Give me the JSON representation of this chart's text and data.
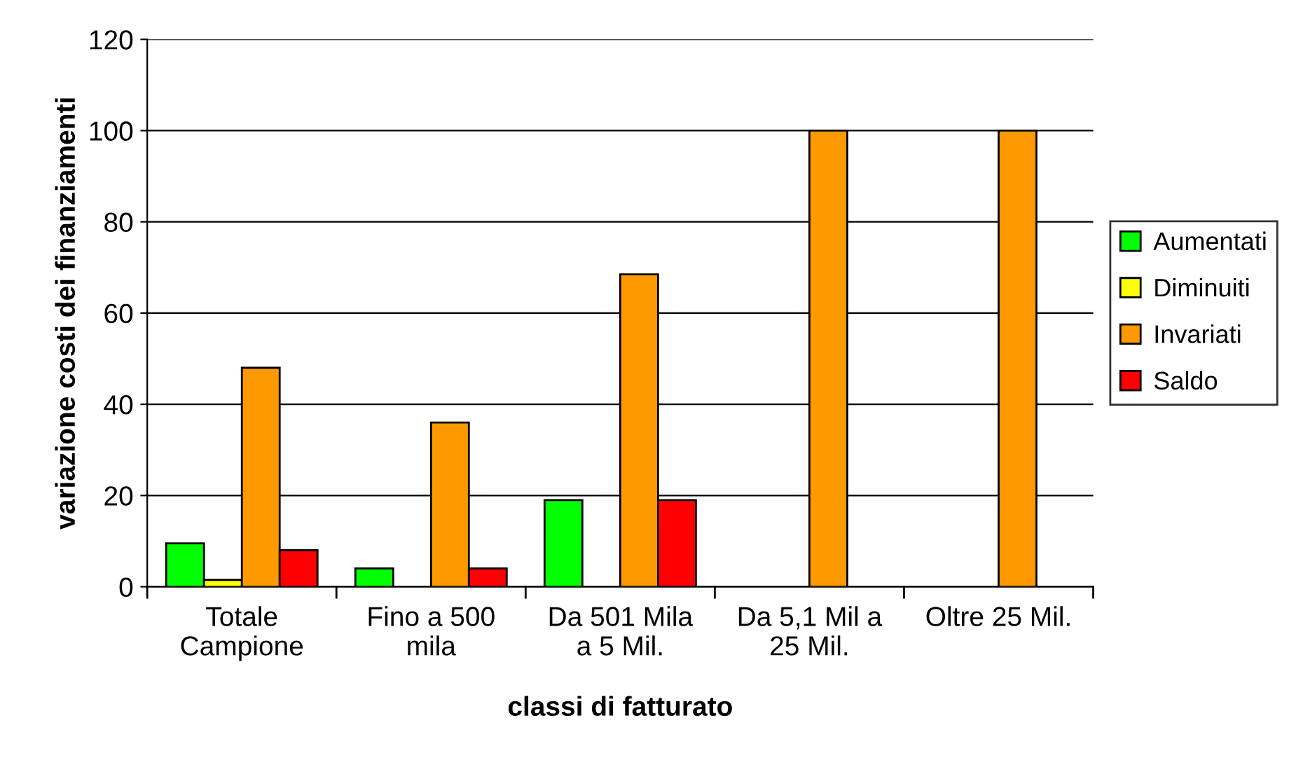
{
  "chart_data": {
    "type": "bar",
    "xlabel": "classi di fatturato",
    "ylabel": "variazione costi dei finanziamenti",
    "categories": [
      "Totale\nCampione",
      "Fino a 500\nmila",
      "Da 501 Mila\na 5 Mil.",
      "Da 5,1 Mil a\n25 Mil.",
      "Oltre 25 Mil."
    ],
    "series": [
      {
        "name": "Aumentati",
        "color": "#00ff00",
        "values": [
          9.5,
          4,
          19,
          null,
          null
        ]
      },
      {
        "name": "Diminuiti",
        "color": "#ffff00",
        "values": [
          1.5,
          null,
          null,
          null,
          null
        ]
      },
      {
        "name": "Invariati",
        "color": "#ff9900",
        "values": [
          48,
          36,
          68.5,
          100,
          100
        ]
      },
      {
        "name": "Saldo",
        "color": "#ff0000",
        "values": [
          8,
          4,
          19,
          null,
          null
        ]
      }
    ],
    "ylim": [
      0,
      120
    ],
    "yticks": [
      0,
      20,
      40,
      60,
      80,
      100,
      120
    ],
    "grid": "y",
    "legend": "right"
  }
}
